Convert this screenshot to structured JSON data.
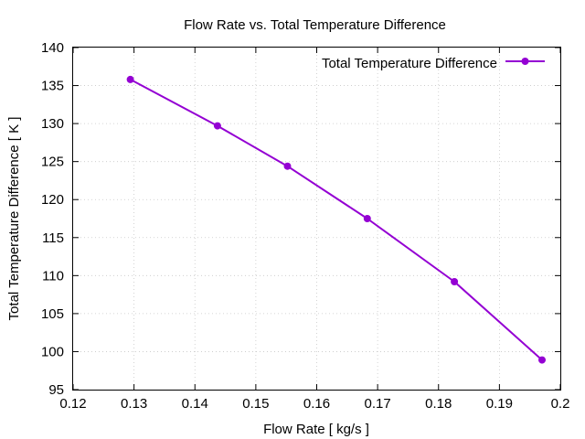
{
  "chart_data": {
    "type": "line",
    "title": "Flow Rate vs. Total Temperature Difference",
    "xlabel": "Flow Rate [ kg/s ]",
    "ylabel": "Total Temperature Difference [ K ]",
    "xlim": [
      0.12,
      0.2
    ],
    "ylim": [
      95,
      140
    ],
    "x_ticks": [
      0.12,
      0.13,
      0.14,
      0.15,
      0.16,
      0.17,
      0.18,
      0.19,
      0.2
    ],
    "x_tick_labels": [
      "0.12",
      "0.13",
      "0.14",
      "0.15",
      "0.16",
      "0.17",
      "0.18",
      "0.19",
      "0.2"
    ],
    "y_ticks": [
      95,
      100,
      105,
      110,
      115,
      120,
      125,
      130,
      135,
      140
    ],
    "y_tick_labels": [
      "95",
      "100",
      "105",
      "110",
      "115",
      "120",
      "125",
      "130",
      "135",
      "140"
    ],
    "grid": true,
    "legend_position": "top-right",
    "series": [
      {
        "name": "Total Temperature Difference",
        "color": "#9400d3",
        "marker": "circle",
        "x": [
          0.1294,
          0.1437,
          0.1552,
          0.1683,
          0.1826,
          0.197
        ],
        "y": [
          135.8,
          129.7,
          124.4,
          117.5,
          109.2,
          98.9
        ]
      }
    ]
  }
}
